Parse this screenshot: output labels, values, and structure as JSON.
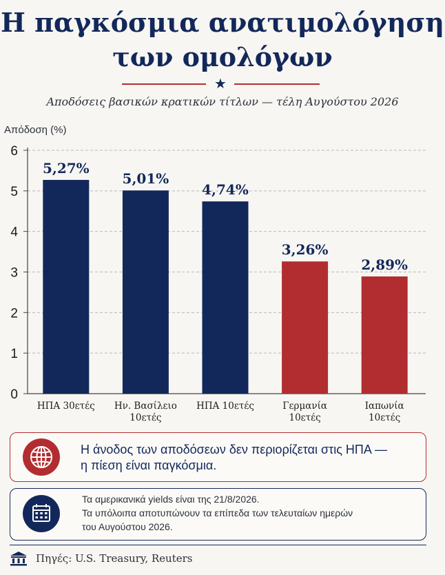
{
  "title": {
    "line1": "Η παγκόσμια ανατιμολόγηση",
    "line2": "των ομολόγων"
  },
  "subtitle": "Αποδόσεις βασικών κρατικών τίτλων — τέλη Αυγούστου 2026",
  "chart_data": {
    "type": "bar",
    "ylabel": "Απόδοση (%)",
    "ylim": [
      0,
      6
    ],
    "yticks": [
      "0",
      "1",
      "2",
      "3",
      "4",
      "5",
      "6"
    ],
    "grid": true,
    "categories": [
      [
        "ΗΠΑ 30ετές"
      ],
      [
        "Ην. Βασίλειο",
        "10ετές"
      ],
      [
        "ΗΠΑ 10ετές"
      ],
      [
        "Γερμανία",
        "10ετές"
      ],
      [
        "Ιαπωνία",
        "10ετές"
      ]
    ],
    "values": [
      5.27,
      5.01,
      4.74,
      3.26,
      2.89
    ],
    "value_labels": [
      "5,27%",
      "5,01%",
      "4,74%",
      "3,26%",
      "2,89%"
    ],
    "colors": [
      "#13285a",
      "#13285a",
      "#13285a",
      "#b22d30",
      "#b22d30"
    ]
  },
  "callout": {
    "line1": "Η άνοδος των αποδόσεων δεν περιορίζεται στις ΗΠΑ —",
    "line2": "η πίεση είναι παγκόσμια.",
    "icon": "globe-icon"
  },
  "note": {
    "line1": "Τα αμερικανικά yields είναι της 21/8/2026.",
    "line2": "Τα υπόλοιπα αποτυπώνουν τα επίπεδα των τελευταίων ημερών",
    "line3": "του Αυγούστου 2026.",
    "icon": "calendar-icon"
  },
  "footer": {
    "source": "Πηγές: U.S. Treasury, Reuters",
    "icon": "bank-icon"
  },
  "colors": {
    "navy": "#13285a",
    "red": "#b22d30",
    "background": "#f7f6f2"
  }
}
